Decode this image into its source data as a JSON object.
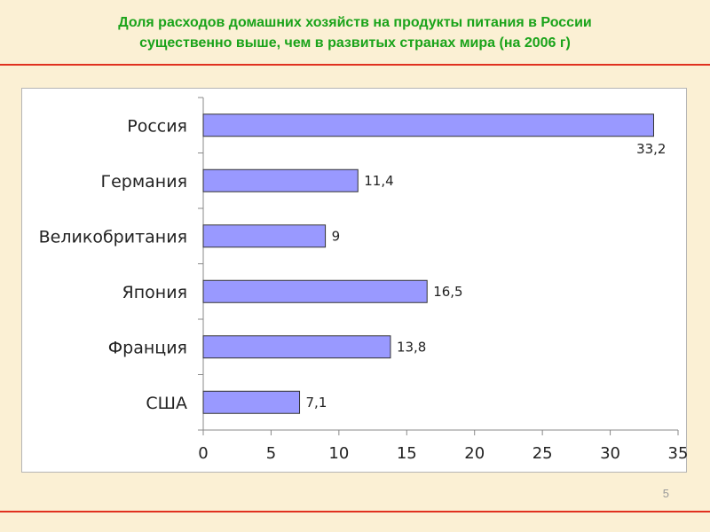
{
  "slide": {
    "title_line1": "Доля расходов домашних хозяйств на продукты питания в России",
    "title_line2": "существенно выше, чем в развитых странах мира (на 2006 г)",
    "page_number": "5"
  },
  "colors": {
    "title": "#1aa31a",
    "rule": "#e0311f",
    "bar_fill": "#9999ff",
    "bar_stroke": "#333333",
    "background": "#fbf0d4"
  },
  "chart_data": {
    "type": "bar",
    "orientation": "horizontal",
    "title": "",
    "xlabel": "",
    "ylabel": "",
    "categories": [
      "Россия",
      "Германия",
      "Великобритания",
      "Япония",
      "Франция",
      "США"
    ],
    "values": [
      33.2,
      11.4,
      9,
      16.5,
      13.8,
      7.1
    ],
    "value_labels": [
      "33,2",
      "11,4",
      "9",
      "16,5",
      "13,8",
      "7,1"
    ],
    "xlim": [
      0,
      35
    ],
    "xticks": [
      0,
      5,
      10,
      15,
      20,
      25,
      30,
      35
    ],
    "xtick_labels": [
      "0",
      "5",
      "10",
      "15",
      "20",
      "25",
      "30",
      "35"
    ],
    "grid": false,
    "legend": "none"
  }
}
